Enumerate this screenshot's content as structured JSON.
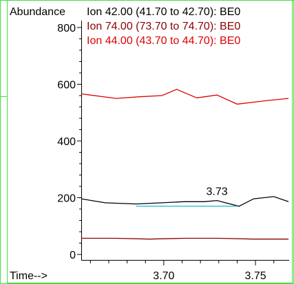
{
  "chart_data": {
    "type": "line",
    "ylabel": "Abundance",
    "xlabel": "Time-->",
    "xlim": [
      3.655,
      3.768
    ],
    "ylim": [
      0,
      800
    ],
    "x_ticks": [
      3.7,
      3.75
    ],
    "x_tick_labels": [
      "3.70",
      "3.75"
    ],
    "y_ticks": [
      0,
      200,
      400,
      600,
      800
    ],
    "y_tick_labels": [
      "0",
      "200",
      "400",
      "600",
      "800"
    ],
    "legend": [
      {
        "label": "Ion  42.00 (41.70 to 42.70): BE0",
        "color": "#000000"
      },
      {
        "label": "Ion  74.00 (73.70 to 74.70): BE0",
        "color": "#8b0000"
      },
      {
        "label": "Ion  44.00 (43.70 to 44.70): BE0",
        "color": "#e00000"
      }
    ],
    "series": [
      {
        "color": "#e00000",
        "x": [
          3.655,
          3.674,
          3.687,
          3.699,
          3.707,
          3.718,
          3.729,
          3.74,
          3.756,
          3.768
        ],
        "y": [
          566,
          550,
          556,
          560,
          582,
          552,
          562,
          530,
          542,
          550
        ]
      },
      {
        "color": "#000000",
        "x": [
          3.655,
          3.668,
          3.685,
          3.699,
          3.711,
          3.722,
          3.729,
          3.741,
          3.749,
          3.76,
          3.768
        ],
        "y": [
          196,
          182,
          178,
          182,
          186,
          186,
          190,
          170,
          196,
          204,
          186
        ]
      },
      {
        "color": "#8b0000",
        "x": [
          3.655,
          3.674,
          3.692,
          3.711,
          3.73,
          3.749,
          3.768
        ],
        "y": [
          57,
          57,
          54,
          57,
          57,
          54,
          54
        ]
      }
    ],
    "annotations": [
      {
        "text": "3.73",
        "x": 3.729,
        "y": 210
      }
    ],
    "integration_baseline": {
      "color": "#3fc1d6",
      "x": [
        3.685,
        3.74
      ],
      "y": [
        170,
        170
      ]
    }
  }
}
